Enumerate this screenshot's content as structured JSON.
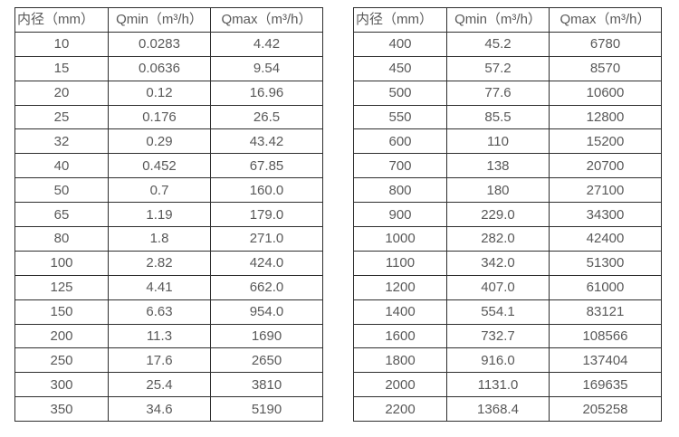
{
  "colors": {
    "border": "#2e2e2e",
    "text": "#595959",
    "background": "#ffffff"
  },
  "tables": [
    {
      "name": "flow-range-table-small-diameters",
      "headers": [
        "内径（mm）",
        "Qmin（m³/h）",
        "Qmax（m³/h）"
      ],
      "rows": [
        [
          "10",
          "0.0283",
          "4.42"
        ],
        [
          "15",
          "0.0636",
          "9.54"
        ],
        [
          "20",
          "0.12",
          "16.96"
        ],
        [
          "25",
          "0.176",
          "26.5"
        ],
        [
          "32",
          "0.29",
          "43.42"
        ],
        [
          "40",
          "0.452",
          "67.85"
        ],
        [
          "50",
          "0.7",
          "160.0"
        ],
        [
          "65",
          "1.19",
          "179.0"
        ],
        [
          "80",
          "1.8",
          "271.0"
        ],
        [
          "100",
          "2.82",
          "424.0"
        ],
        [
          "125",
          "4.41",
          "662.0"
        ],
        [
          "150",
          "6.63",
          "954.0"
        ],
        [
          "200",
          "11.3",
          "1690"
        ],
        [
          "250",
          "17.6",
          "2650"
        ],
        [
          "300",
          "25.4",
          "3810"
        ],
        [
          "350",
          "34.6",
          "5190"
        ]
      ]
    },
    {
      "name": "flow-range-table-large-diameters",
      "headers": [
        "内径（mm）",
        "Qmin（m³/h）",
        "Qmax（m³/h）"
      ],
      "rows": [
        [
          "400",
          "45.2",
          "6780"
        ],
        [
          "450",
          "57.2",
          "8570"
        ],
        [
          "500",
          "77.6",
          "10600"
        ],
        [
          "550",
          "85.5",
          "12800"
        ],
        [
          "600",
          "110",
          "15200"
        ],
        [
          "700",
          "138",
          "20700"
        ],
        [
          "800",
          "180",
          "27100"
        ],
        [
          "900",
          "229.0",
          "34300"
        ],
        [
          "1000",
          "282.0",
          "42400"
        ],
        [
          "1100",
          "342.0",
          "51300"
        ],
        [
          "1200",
          "407.0",
          "61000"
        ],
        [
          "1400",
          "554.1",
          "83121"
        ],
        [
          "1600",
          "732.7",
          "108566"
        ],
        [
          "1800",
          "916.0",
          "137404"
        ],
        [
          "2000",
          "1131.0",
          "169635"
        ],
        [
          "2200",
          "1368.4",
          "205258"
        ]
      ]
    }
  ]
}
